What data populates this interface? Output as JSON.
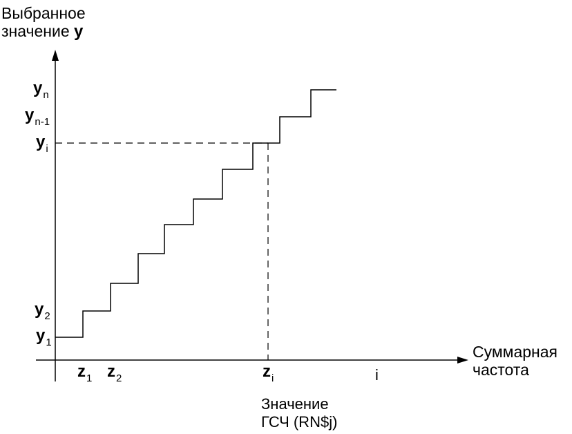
{
  "y_axis_title": {
    "line1": "Выбранное",
    "line2": "значение",
    "var": "y"
  },
  "x_axis_title": {
    "line1": "Суммарная",
    "line2": "частота"
  },
  "bottom_caption": {
    "line1": "Значение",
    "line2": "ГСЧ (RN$j)"
  },
  "y_ticks": {
    "yn": {
      "v": "y",
      "s": "n"
    },
    "yn1": {
      "v": "y",
      "s": "n-1"
    },
    "yi": {
      "v": "y",
      "s": "i"
    },
    "y2": {
      "v": "y",
      "s": "2"
    },
    "y1": {
      "v": "y",
      "s": "1"
    }
  },
  "z_ticks": {
    "z1": {
      "v": "z",
      "s": "1"
    },
    "z2": {
      "v": "z",
      "s": "2"
    },
    "zi": {
      "v": "z",
      "s": "i"
    }
  },
  "index_label": "i",
  "colors": {
    "ink": "#000000",
    "background": "#ffffff"
  }
}
